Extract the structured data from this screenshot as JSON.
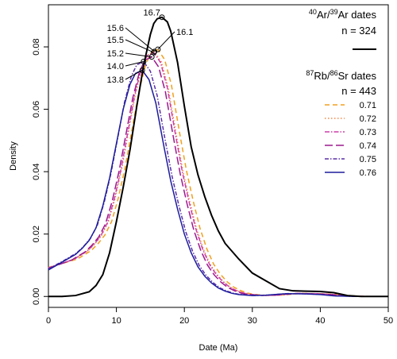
{
  "chart_data": {
    "type": "line",
    "xlabel": "Date (Ma)",
    "ylabel": "Density",
    "xlim": [
      0,
      50
    ],
    "ylim": [
      -0.0035,
      0.0935
    ],
    "x_ticks": [
      0,
      10,
      20,
      30,
      40,
      50
    ],
    "y_ticks": [
      0.0,
      0.02,
      0.04,
      0.06,
      0.08
    ],
    "y_tick_labels": [
      "0.00",
      "0.02",
      "0.04",
      "0.06",
      "0.08"
    ],
    "ar_legend": {
      "sup1": "40",
      "mid": "Ar/",
      "sup2": "39",
      "tail": "Ar dates",
      "n": "n = 324"
    },
    "rb_legend": {
      "sup1": "87",
      "mid": "Rb/",
      "sup2": "86",
      "tail": "Sr dates",
      "n": "n = 443"
    },
    "ar_series": {
      "color": "#000000",
      "x": [
        0,
        2,
        4,
        6,
        7,
        8,
        9,
        10,
        11,
        12,
        13,
        14,
        15,
        15.5,
        16,
        16.7,
        17.5,
        18,
        19,
        20,
        21,
        22,
        23,
        24,
        25,
        26,
        28,
        30,
        32,
        34,
        36,
        38,
        40,
        42,
        44,
        46,
        50
      ],
      "y": [
        0.0,
        0.0,
        0.0003,
        0.0015,
        0.0035,
        0.007,
        0.014,
        0.024,
        0.035,
        0.047,
        0.061,
        0.074,
        0.084,
        0.0875,
        0.089,
        0.0895,
        0.088,
        0.085,
        0.075,
        0.061,
        0.048,
        0.039,
        0.032,
        0.026,
        0.021,
        0.017,
        0.012,
        0.0075,
        0.005,
        0.0025,
        0.0018,
        0.0017,
        0.0016,
        0.0012,
        0.0003,
        0.0,
        0.0
      ]
    },
    "rb_series": [
      {
        "name": "0.71",
        "color": "#f0a020",
        "dash": "6,4",
        "peak": [
          16.1,
          0.0792
        ],
        "shift": 2.3
      },
      {
        "name": "0.72",
        "color": "#f08a4a",
        "dash": "1.5,2.5",
        "peak": [
          15.6,
          0.0785
        ],
        "shift": 1.8
      },
      {
        "name": "0.73",
        "color": "#cc3fa8",
        "dash": "6,2,1.5,2",
        "peak": [
          15.5,
          0.0782
        ],
        "shift": 1.7
      },
      {
        "name": "0.74",
        "color": "#9b1a8e",
        "dash": "10,4",
        "peak": [
          15.2,
          0.0768
        ],
        "shift": 1.4
      },
      {
        "name": "0.75",
        "color": "#5a2fa6",
        "dash": "5,2,1.5,2",
        "peak": [
          14.0,
          0.0753
        ],
        "shift": 0.2
      },
      {
        "name": "0.76",
        "color": "#1c1c9c",
        "dash": "",
        "peak": [
          13.8,
          0.0725
        ],
        "shift": 0.0
      }
    ],
    "rb_base": {
      "x": [
        0,
        2,
        4,
        5,
        6,
        7,
        8,
        9,
        10,
        11,
        12,
        12.8,
        13.8,
        14.8,
        15.8,
        17,
        18,
        19,
        20,
        21,
        22,
        23,
        24,
        25,
        26,
        27,
        28,
        30,
        32,
        35,
        38,
        40,
        42,
        45,
        50
      ],
      "y": [
        0.0085,
        0.011,
        0.0135,
        0.0155,
        0.018,
        0.022,
        0.029,
        0.038,
        0.049,
        0.06,
        0.068,
        0.0715,
        0.0725,
        0.0695,
        0.062,
        0.048,
        0.037,
        0.028,
        0.02,
        0.014,
        0.0095,
        0.0065,
        0.0043,
        0.0027,
        0.0017,
        0.001,
        0.0006,
        0.0003,
        0.0004,
        0.0009,
        0.0008,
        0.0006,
        0.0002,
        0.0,
        0.0
      ]
    },
    "ar_peak_label": {
      "text": "16.7",
      "x": 16.7,
      "y": 0.0895
    },
    "peak_labels": [
      {
        "text": "16.1",
        "series": "0.71"
      },
      {
        "text": "15.6",
        "series": "0.72"
      },
      {
        "text": "15.5",
        "series": "0.73"
      },
      {
        "text": "15.2",
        "series": "0.74"
      },
      {
        "text": "14.0",
        "series": "0.75"
      },
      {
        "text": "13.8",
        "series": "0.76"
      }
    ]
  }
}
